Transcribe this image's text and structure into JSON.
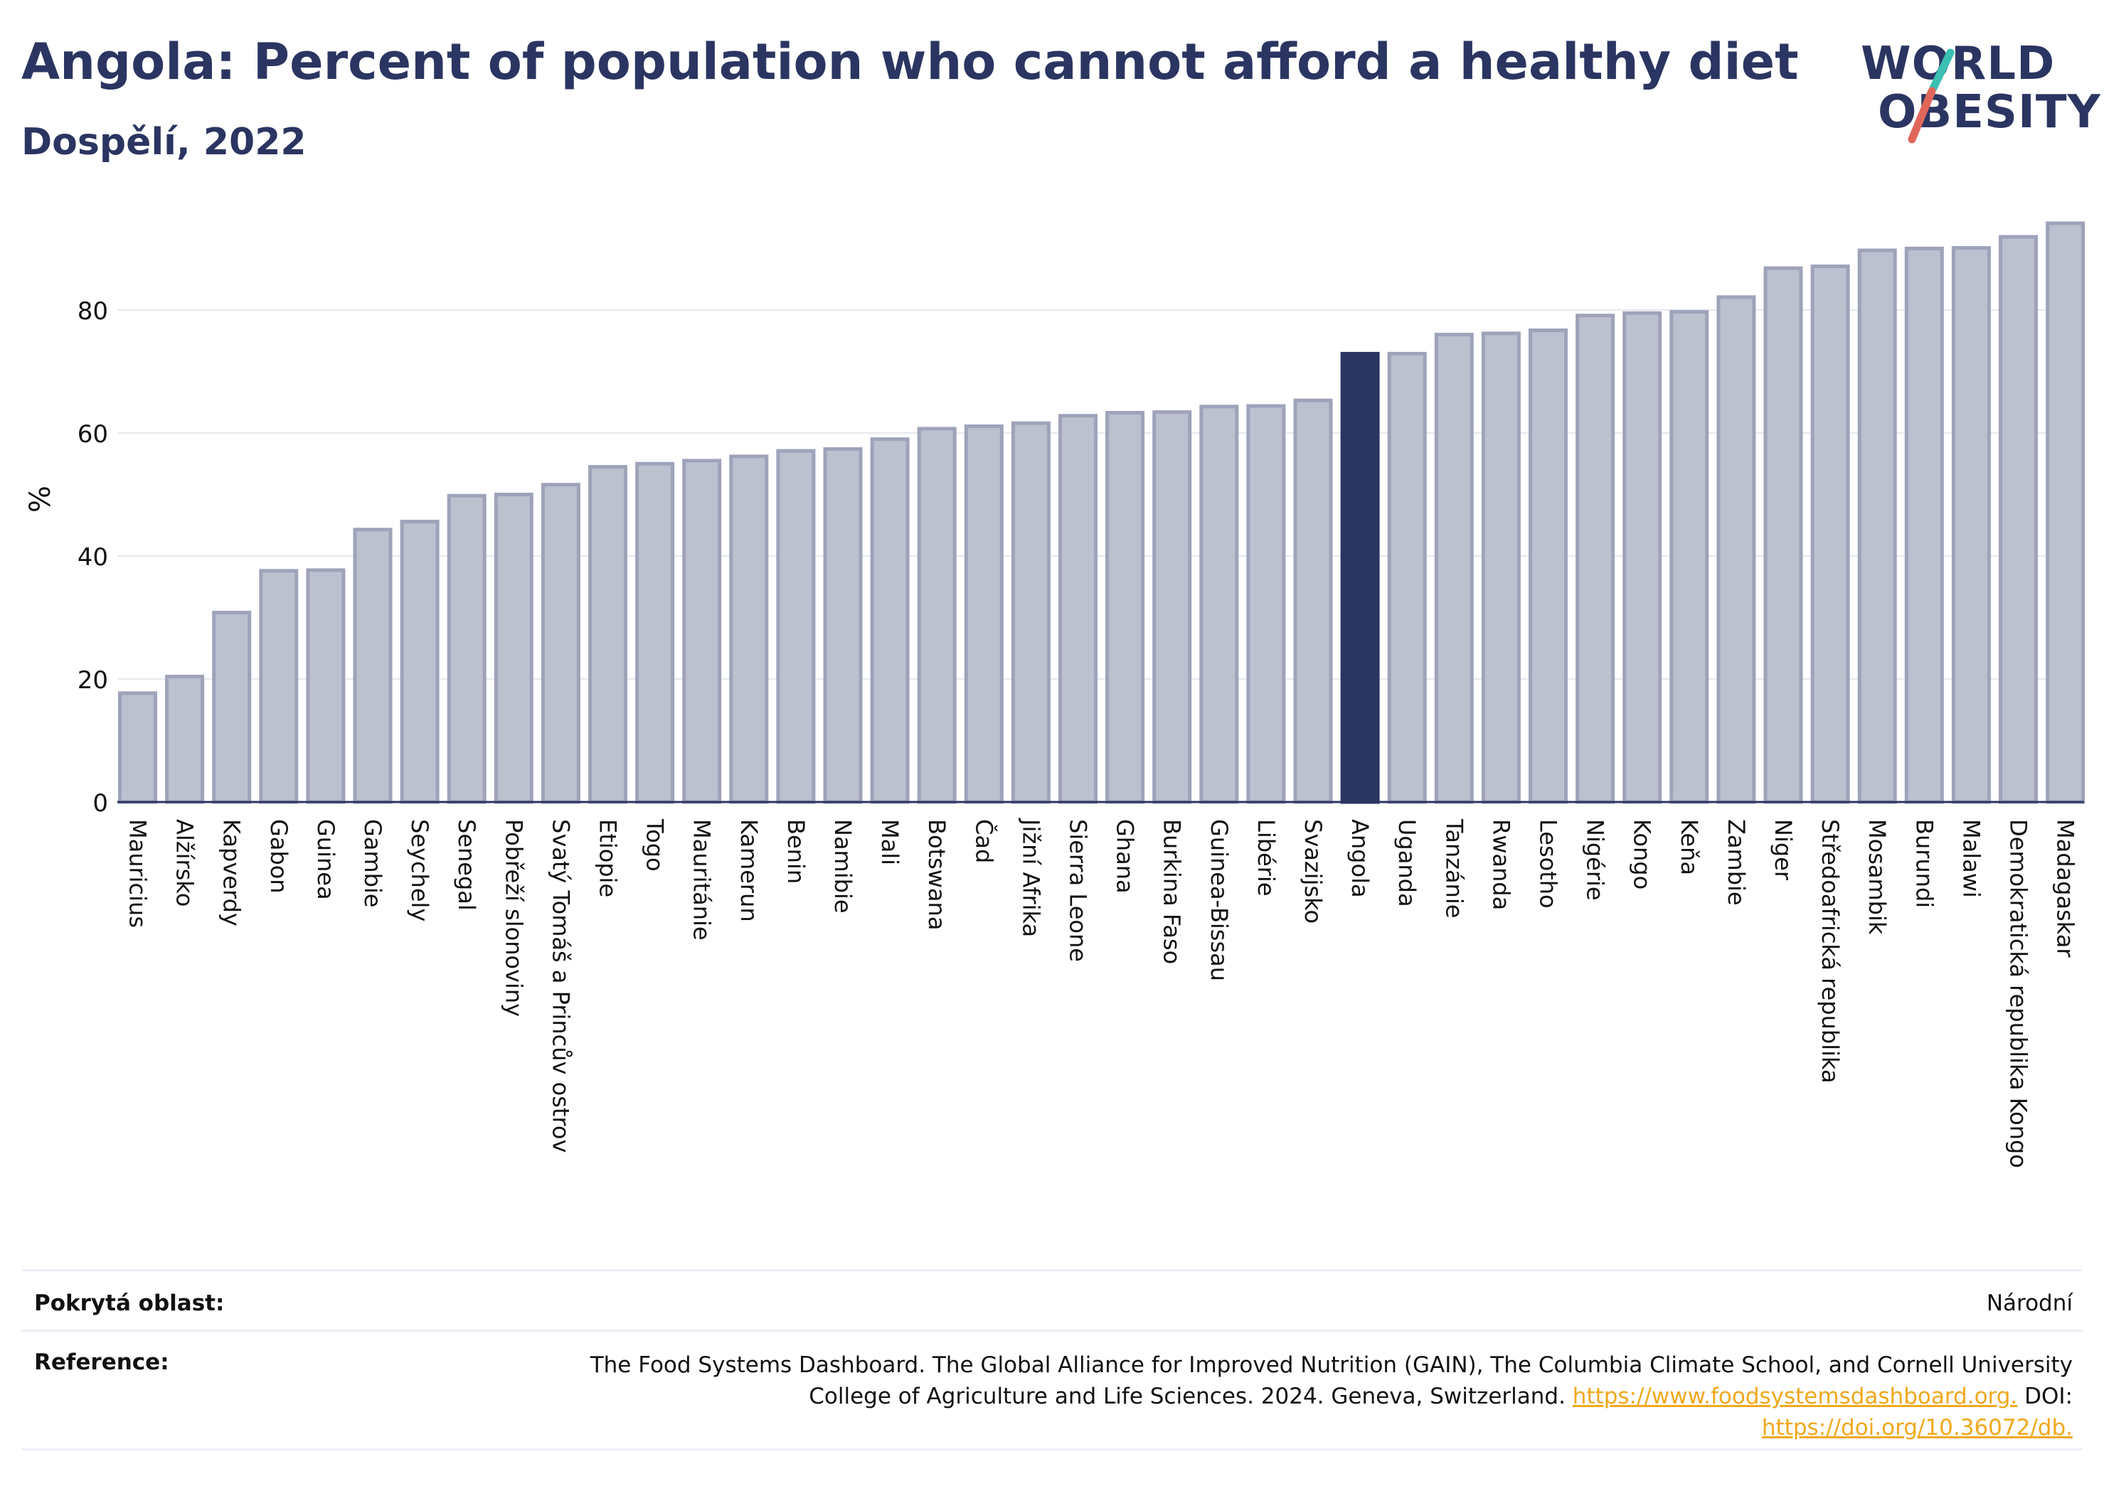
{
  "header": {
    "title": "Angola: Percent of population who cannot afford a healthy diet",
    "subtitle": "Dospělí, 2022"
  },
  "logo": {
    "line1": "WORLD",
    "line2": "OBESITY",
    "accent_teal": "#3bbfb3",
    "accent_coral": "#e0665a"
  },
  "colors": {
    "bar": "#bcc0cf",
    "bar_border": "#9ea3ba",
    "highlight": "#2b3561",
    "grid": "#e6e8f0",
    "axis": "#2b3561",
    "link": "#f0a81c"
  },
  "chart_data": {
    "type": "bar",
    "title": "Angola: Percent of population who cannot afford a healthy diet",
    "subtitle": "Dospělí, 2022",
    "xlabel": "",
    "ylabel": "%",
    "ylim": [
      0,
      95
    ],
    "yticks": [
      0,
      20,
      40,
      60,
      80
    ],
    "grid": true,
    "highlight": "Angola",
    "categories": [
      "Mauricius",
      "Alžírsko",
      "Kapverdy",
      "Gabon",
      "Guinea",
      "Gambie",
      "Seychely",
      "Senegal",
      "Pobřeží slonoviny",
      "Svatý Tomáš a Princův ostrov",
      "Etiopie",
      "Togo",
      "Mauritánie",
      "Kamerun",
      "Benin",
      "Namibie",
      "Mali",
      "Botswana",
      "Čad",
      "Jižní Afrika",
      "Sierra Leone",
      "Ghana",
      "Burkina Faso",
      "Guinea-Bissau",
      "Libérie",
      "Svazijsko",
      "Angola",
      "Uganda",
      "Tanzánie",
      "Rwanda",
      "Lesotho",
      "Nigérie",
      "Kongo",
      "Keňa",
      "Zambie",
      "Niger",
      "Středoafrická republika",
      "Mosambik",
      "Burundi",
      "Malawi",
      "Demokratická republika Kongo",
      "Madagaskar"
    ],
    "values": [
      17.7,
      20.4,
      30.8,
      37.6,
      37.7,
      44.3,
      45.6,
      49.8,
      50.0,
      51.6,
      54.5,
      55.0,
      55.5,
      56.2,
      57.1,
      57.4,
      59.0,
      60.7,
      61.1,
      61.6,
      62.8,
      63.3,
      63.4,
      64.3,
      64.4,
      65.3,
      72.9,
      72.9,
      76.0,
      76.2,
      76.7,
      79.1,
      79.5,
      79.7,
      82.1,
      86.8,
      87.1,
      89.7,
      90.0,
      90.1,
      91.9,
      94.1
    ]
  },
  "footer": {
    "coverage_label": "Pokrytá oblast:",
    "coverage_value": "Národní",
    "reference_label": "Reference:",
    "reference_text": "The Food Systems Dashboard. The Global Alliance for Improved Nutrition (GAIN), The Columbia Climate School, and Cornell University College of Agriculture and Life Sciences. 2024. Geneva, Switzerland.",
    "reference_link": "https://www.foodsystemsdashboard.org.",
    "doi_label": "DOI:",
    "doi_link": "https://doi.org/10.36072/db."
  }
}
